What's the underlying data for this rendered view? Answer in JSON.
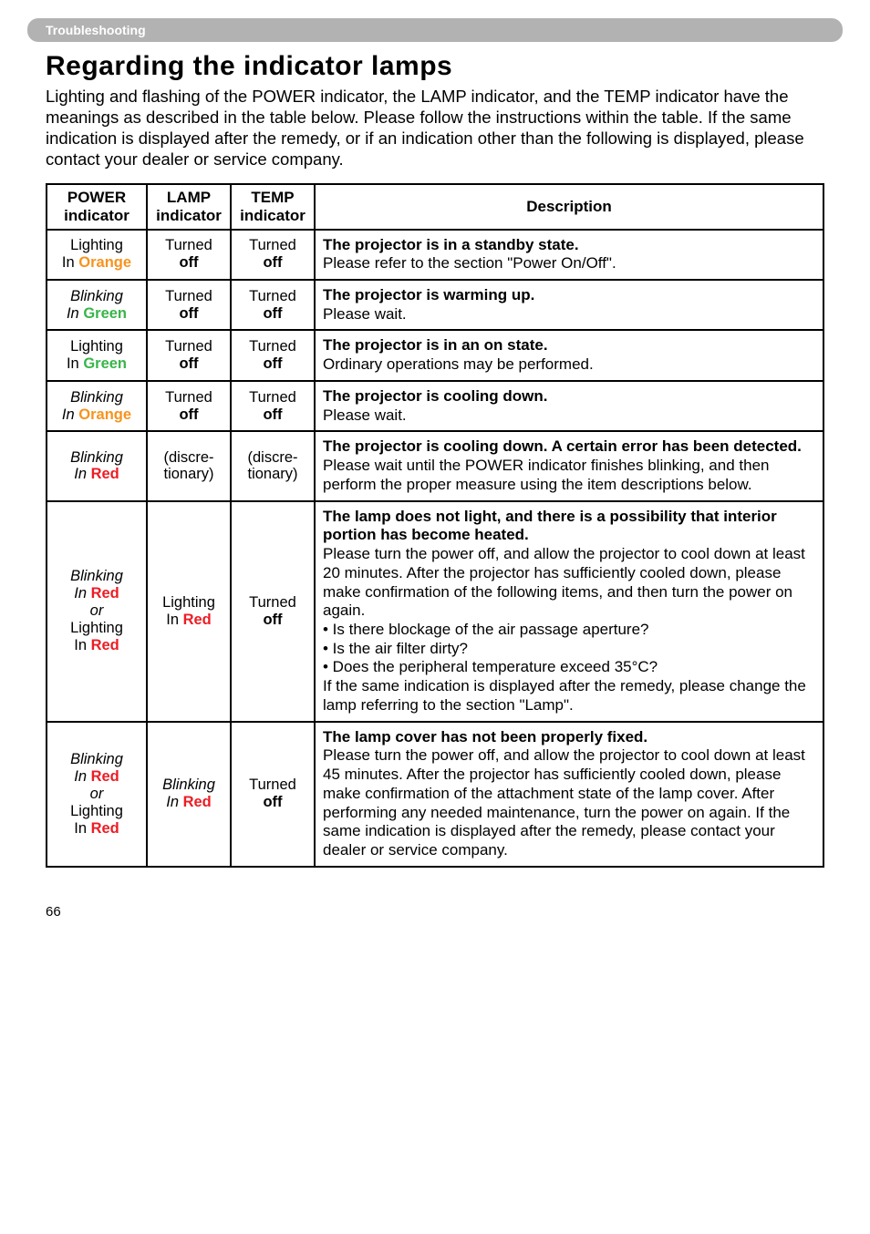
{
  "header_bar": "Troubleshooting",
  "title": "Regarding the indicator lamps",
  "intro": "Lighting and flashing of the POWER indicator, the LAMP indicator, and the TEMP indicator have the meanings as described in the table below. Please follow the instructions within the table. If the same indication is displayed after the remedy, or if an indication other than the following is displayed, please contact your dealer or service company.",
  "headers": {
    "h1a": "POWER",
    "h1b": "indicator",
    "h2a": "LAMP",
    "h2b": "indicator",
    "h3a": "TEMP",
    "h3b": "indicator",
    "h4": "Description"
  },
  "rows": {
    "r1": {
      "power_a": "Lighting",
      "power_b_pre": "In ",
      "power_b_color": "Orange",
      "lamp_a": "Turned",
      "lamp_b": "off",
      "temp_a": "Turned",
      "temp_b": "off",
      "desc_title": "The projector is in a standby state.",
      "desc_body": "Please refer to the section \"Power On/Off\"."
    },
    "r2": {
      "power_a": "Blinking",
      "power_b_pre": "In ",
      "power_b_color": "Green",
      "lamp_a": "Turned",
      "lamp_b": "off",
      "temp_a": "Turned",
      "temp_b": "off",
      "desc_title": "The projector is warming up.",
      "desc_body": "Please wait."
    },
    "r3": {
      "power_a": "Lighting",
      "power_b_pre": "In ",
      "power_b_color": "Green",
      "lamp_a": "Turned",
      "lamp_b": "off",
      "temp_a": "Turned",
      "temp_b": "off",
      "desc_title": "The projector is in an on state.",
      "desc_body": "Ordinary operations may be performed."
    },
    "r4": {
      "power_a": "Blinking",
      "power_b_pre": "In ",
      "power_b_color": "Orange",
      "lamp_a": "Turned",
      "lamp_b": "off",
      "temp_a": "Turned",
      "temp_b": "off",
      "desc_title": "The projector is cooling down.",
      "desc_body": "Please wait."
    },
    "r5": {
      "power_a": "Blinking",
      "power_b_pre": "In ",
      "power_b_color": "Red",
      "lamp_a": "(discre-",
      "lamp_b": "tionary)",
      "temp_a": "(discre-",
      "temp_b": "tionary)",
      "desc_title": "The projector is cooling down. A certain error has been detected.",
      "desc_body": "Please wait until the POWER indicator finishes blinking, and then perform the proper measure using the item descriptions below."
    },
    "r6": {
      "power_a": "Blinking",
      "power_b_pre": "In ",
      "power_b_color": "Red",
      "power_c": "or",
      "power_d": "Lighting",
      "power_e_pre": "In ",
      "power_e_color": "Red",
      "lamp_a": "Lighting",
      "lamp_b_pre": "In ",
      "lamp_b_color": "Red",
      "temp_a": "Turned",
      "temp_b": "off",
      "desc_title": "The lamp does not light, and there is a possibility that interior portion has become heated.",
      "desc_body": "Please turn the power off, and allow the projector to cool down at least 20 minutes. After the projector has sufficiently cooled down, please make confirmation of the following items, and then turn the power on again.\n• Is there blockage of the air passage aperture?\n• Is the air filter dirty?\n• Does the peripheral temperature exceed 35°C?\nIf the same indication is displayed after the remedy, please change the lamp referring to the section \"Lamp\"."
    },
    "r7": {
      "power_a": "Blinking",
      "power_b_pre": "In ",
      "power_b_color": "Red",
      "power_c": "or",
      "power_d": "Lighting",
      "power_e_pre": "In ",
      "power_e_color": "Red",
      "lamp_a": "Blinking",
      "lamp_b_pre": "In ",
      "lamp_b_color": "Red",
      "temp_a": "Turned",
      "temp_b": "off",
      "desc_title": "The lamp cover has not been properly fixed.",
      "desc_body": "Please turn the power off, and allow the projector to cool down at least 45 minutes. After the projector has sufficiently cooled down, please make confirmation of the attachment state of the lamp cover. After performing any needed maintenance, turn the power on again. If the same indication is displayed after the remedy, please contact your dealer or service company."
    }
  },
  "page_num": "66"
}
